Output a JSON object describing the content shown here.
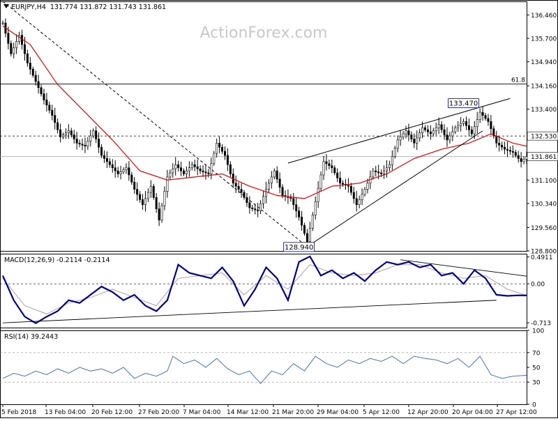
{
  "header": {
    "instrument": "EURJPY,H4",
    "ohlc": "131.774 131.872 131.743 131.861"
  },
  "watermark": "ActionForex.com",
  "colors": {
    "price": "#000000",
    "ma": "#e00000",
    "macd": "#00008b",
    "signal": "#b0a0a0",
    "rsi": "#4a70c0",
    "grid": "#cccccc"
  },
  "chart_data": [
    {
      "type": "candlestick",
      "title": "EURJPY,H4",
      "x_labels": [
        "5 Feb 2018",
        "13 Feb 04:00",
        "20 Feb 12:00",
        "27 Feb 20:00",
        "7 Mar 04:00",
        "14 Mar 12:00",
        "21 Mar 20:00",
        "29 Mar 04:00",
        "5 Apr 12:00",
        "12 Apr 20:00",
        "20 Apr 04:00",
        "27 Apr 12:00"
      ],
      "y_ticks": [
        136.46,
        135.7,
        134.94,
        134.16,
        133.4,
        132.53,
        131.861,
        131.1,
        130.34,
        129.56,
        128.8
      ],
      "y_tick_labels": [
        "136.460",
        "135.700",
        "134.940",
        "134.160",
        "133.400",
        "132.530",
        "131.861",
        "131.100",
        "130.340",
        "129.560",
        "128.800"
      ],
      "ylim": [
        128.8,
        136.9
      ],
      "fib_level": {
        "label": "61.8",
        "value": 134.22
      },
      "resistance_level": 132.53,
      "current_price": 131.861,
      "annotations": [
        {
          "text": "133.470",
          "value": 133.47
        },
        {
          "text": "128.940",
          "value": 128.94
        }
      ],
      "close_path": [
        [
          0,
          136.2
        ],
        [
          3,
          135.2
        ],
        [
          6,
          135.8
        ],
        [
          9,
          134.9
        ],
        [
          12,
          134.3
        ],
        [
          15,
          133.7
        ],
        [
          18,
          133.2
        ],
        [
          21,
          132.5
        ],
        [
          24,
          132.7
        ],
        [
          27,
          132.3
        ],
        [
          30,
          132.2
        ],
        [
          33,
          132.7
        ],
        [
          36,
          131.9
        ],
        [
          39,
          131.6
        ],
        [
          42,
          131.3
        ],
        [
          45,
          131.5
        ],
        [
          48,
          130.8
        ],
        [
          51,
          130.3
        ],
        [
          54,
          130.9
        ],
        [
          57,
          129.8
        ],
        [
          60,
          131.2
        ],
        [
          63,
          131.6
        ],
        [
          66,
          131.3
        ],
        [
          69,
          131.6
        ],
        [
          72,
          131.4
        ],
        [
          75,
          131.3
        ],
        [
          78,
          132.3
        ],
        [
          81,
          131.9
        ],
        [
          84,
          131.0
        ],
        [
          87,
          130.7
        ],
        [
          90,
          130.2
        ],
        [
          93,
          130.1
        ],
        [
          96,
          130.8
        ],
        [
          99,
          131.4
        ],
        [
          102,
          130.6
        ],
        [
          105,
          130.5
        ],
        [
          108,
          129.9
        ],
        [
          111,
          129.1
        ],
        [
          114,
          130.4
        ],
        [
          117,
          131.7
        ],
        [
          120,
          131.5
        ],
        [
          123,
          131.0
        ],
        [
          126,
          130.9
        ],
        [
          129,
          130.3
        ],
        [
          132,
          130.8
        ],
        [
          135,
          131.4
        ],
        [
          138,
          131.3
        ],
        [
          141,
          131.6
        ],
        [
          144,
          132.4
        ],
        [
          147,
          132.7
        ],
        [
          150,
          132.3
        ],
        [
          153,
          132.8
        ],
        [
          156,
          132.6
        ],
        [
          159,
          132.9
        ],
        [
          162,
          132.4
        ],
        [
          165,
          132.8
        ],
        [
          168,
          133.0
        ],
        [
          171,
          132.6
        ],
        [
          174,
          133.3
        ],
        [
          177,
          133.0
        ],
        [
          180,
          132.3
        ],
        [
          183,
          132.1
        ],
        [
          186,
          132.0
        ],
        [
          189,
          131.7
        ],
        [
          191,
          131.861
        ]
      ],
      "ma_path": [
        [
          0,
          136.1
        ],
        [
          10,
          135.5
        ],
        [
          20,
          134.2
        ],
        [
          30,
          133.3
        ],
        [
          40,
          132.4
        ],
        [
          50,
          131.4
        ],
        [
          60,
          131.1
        ],
        [
          70,
          131.2
        ],
        [
          80,
          131.3
        ],
        [
          90,
          130.9
        ],
        [
          100,
          130.6
        ],
        [
          110,
          130.5
        ],
        [
          120,
          130.9
        ],
        [
          130,
          131.0
        ],
        [
          140,
          131.3
        ],
        [
          150,
          131.8
        ],
        [
          160,
          132.1
        ],
        [
          170,
          132.3
        ],
        [
          178,
          132.6
        ],
        [
          186,
          132.3
        ],
        [
          191,
          132.2
        ]
      ],
      "trendlines": [
        {
          "from": [
            0,
            136.9
          ],
          "to": [
            111,
            128.94
          ],
          "style": "dashed"
        },
        {
          "from": [
            111,
            128.94
          ],
          "to": [
            175,
            132.7
          ],
          "style": "solid"
        },
        {
          "from": [
            104,
            131.65
          ],
          "to": [
            185,
            133.75
          ],
          "style": "solid"
        }
      ]
    },
    {
      "type": "line",
      "title": "MACD(12,26,9) -0.2114 -0.2114",
      "y_ticks": [
        0.4911,
        0.0,
        -0.713
      ],
      "y_tick_labels": [
        "0.4911",
        "0.00",
        "-0.713"
      ],
      "ylim": [
        -0.8,
        0.55
      ],
      "series": [
        {
          "name": "MACD",
          "points": [
            [
              0,
              0.15
            ],
            [
              4,
              -0.3
            ],
            [
              8,
              -0.6
            ],
            [
              12,
              -0.72
            ],
            [
              16,
              -0.6
            ],
            [
              20,
              -0.5
            ],
            [
              24,
              -0.3
            ],
            [
              28,
              -0.35
            ],
            [
              32,
              -0.2
            ],
            [
              36,
              -0.05
            ],
            [
              40,
              -0.15
            ],
            [
              44,
              -0.3
            ],
            [
              48,
              -0.2
            ],
            [
              52,
              -0.4
            ],
            [
              56,
              -0.5
            ],
            [
              60,
              -0.3
            ],
            [
              64,
              0.35
            ],
            [
              68,
              0.2
            ],
            [
              72,
              0.15
            ],
            [
              76,
              0.1
            ],
            [
              80,
              0.3
            ],
            [
              84,
              0.05
            ],
            [
              88,
              -0.4
            ],
            [
              92,
              -0.1
            ],
            [
              96,
              0.3
            ],
            [
              100,
              0.1
            ],
            [
              104,
              -0.3
            ],
            [
              108,
              0.4
            ],
            [
              112,
              0.5
            ],
            [
              116,
              0.15
            ],
            [
              120,
              0.25
            ],
            [
              124,
              0.1
            ],
            [
              128,
              0.2
            ],
            [
              132,
              0.05
            ],
            [
              136,
              0.25
            ],
            [
              140,
              0.4
            ],
            [
              144,
              0.35
            ],
            [
              148,
              0.4
            ],
            [
              152,
              0.3
            ],
            [
              156,
              0.35
            ],
            [
              160,
              0.15
            ],
            [
              164,
              0.2
            ],
            [
              168,
              0.0
            ],
            [
              172,
              0.25
            ],
            [
              176,
              0.1
            ],
            [
              180,
              -0.2
            ],
            [
              184,
              -0.22
            ],
            [
              188,
              -0.21
            ],
            [
              191,
              -0.2114
            ]
          ]
        },
        {
          "name": "Signal",
          "points": [
            [
              0,
              0.1
            ],
            [
              8,
              -0.4
            ],
            [
              16,
              -0.55
            ],
            [
              24,
              -0.35
            ],
            [
              32,
              -0.25
            ],
            [
              40,
              -0.1
            ],
            [
              48,
              -0.25
            ],
            [
              56,
              -0.4
            ],
            [
              64,
              0.1
            ],
            [
              72,
              0.15
            ],
            [
              80,
              0.2
            ],
            [
              88,
              -0.2
            ],
            [
              96,
              0.15
            ],
            [
              104,
              -0.1
            ],
            [
              112,
              0.35
            ],
            [
              120,
              0.2
            ],
            [
              128,
              0.15
            ],
            [
              136,
              0.2
            ],
            [
              144,
              0.35
            ],
            [
              152,
              0.35
            ],
            [
              160,
              0.2
            ],
            [
              168,
              0.1
            ],
            [
              176,
              0.15
            ],
            [
              184,
              -0.1
            ],
            [
              191,
              -0.2114
            ]
          ]
        }
      ],
      "trendlines": [
        {
          "from": [
            0,
            -0.713
          ],
          "to": [
            180,
            -0.3
          ]
        },
        {
          "from": [
            145,
            0.44
          ],
          "to": [
            191,
            0.14
          ]
        }
      ]
    },
    {
      "type": "line",
      "title": "RSI(14) 39.2443",
      "y_ticks": [
        100,
        70,
        50,
        30,
        0
      ],
      "y_tick_labels": [
        "100",
        "70",
        "50",
        "30",
        "0"
      ],
      "ylim": [
        0,
        100
      ],
      "series": [
        {
          "name": "RSI",
          "points": [
            [
              0,
              35
            ],
            [
              4,
              42
            ],
            [
              8,
              38
            ],
            [
              12,
              45
            ],
            [
              16,
              40
            ],
            [
              20,
              48
            ],
            [
              24,
              42
            ],
            [
              28,
              50
            ],
            [
              32,
              45
            ],
            [
              36,
              48
            ],
            [
              40,
              42
            ],
            [
              44,
              50
            ],
            [
              48,
              35
            ],
            [
              52,
              42
            ],
            [
              56,
              38
            ],
            [
              60,
              45
            ],
            [
              62,
              65
            ],
            [
              66,
              55
            ],
            [
              70,
              60
            ],
            [
              74,
              50
            ],
            [
              78,
              62
            ],
            [
              82,
              48
            ],
            [
              86,
              40
            ],
            [
              90,
              45
            ],
            [
              94,
              28
            ],
            [
              98,
              45
            ],
            [
              102,
              40
            ],
            [
              106,
              55
            ],
            [
              110,
              45
            ],
            [
              114,
              65
            ],
            [
              118,
              55
            ],
            [
              122,
              50
            ],
            [
              126,
              60
            ],
            [
              130,
              55
            ],
            [
              134,
              62
            ],
            [
              138,
              58
            ],
            [
              142,
              65
            ],
            [
              146,
              55
            ],
            [
              150,
              65
            ],
            [
              154,
              62
            ],
            [
              158,
              60
            ],
            [
              162,
              55
            ],
            [
              166,
              62
            ],
            [
              170,
              50
            ],
            [
              174,
              65
            ],
            [
              178,
              40
            ],
            [
              182,
              35
            ],
            [
              186,
              38
            ],
            [
              191,
              39.2443
            ]
          ]
        }
      ]
    }
  ]
}
